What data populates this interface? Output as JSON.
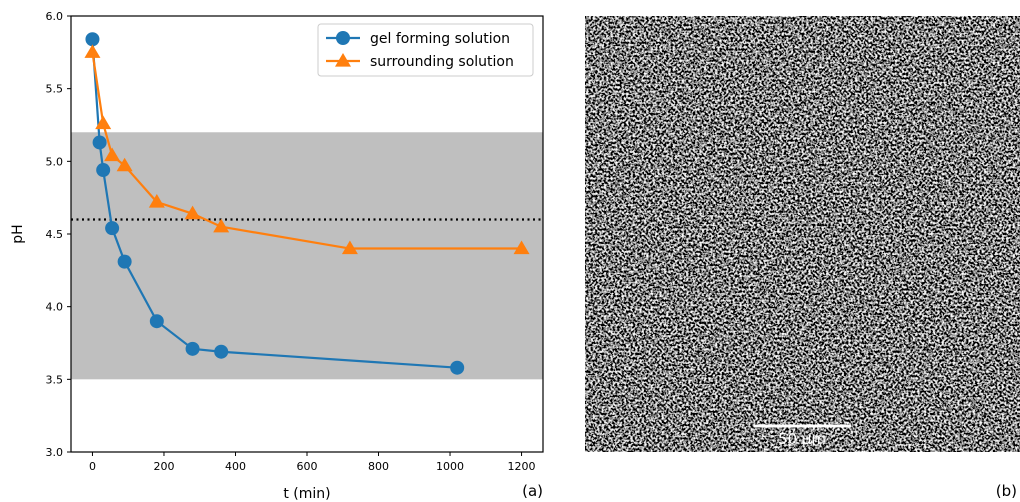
{
  "chart_data": {
    "type": "line",
    "xlabel": "t (min)",
    "ylabel": "pH",
    "panel_label": "(a)",
    "xlim": [
      -60,
      1260
    ],
    "ylim": [
      3.0,
      6.0
    ],
    "xticks": [
      0,
      200,
      400,
      600,
      800,
      1000,
      1200
    ],
    "yticks": [
      {
        "value": 3,
        "label": "3.0"
      },
      3.5,
      {
        "value": 4,
        "label": "4.0"
      },
      4.5,
      {
        "value": 5,
        "label": "5.0"
      },
      5.5,
      {
        "value": 6,
        "label": "6.0"
      }
    ],
    "shaded_band": [
      3.5,
      5.2
    ],
    "shaded_color": "#bfbfbf",
    "reference_line": 4.6,
    "legend": "upper right",
    "series": [
      {
        "name": "gel forming solution",
        "color": "#1f77b4",
        "marker": "circle",
        "x": [
          0,
          20,
          30,
          55,
          90,
          180,
          280,
          360,
          1020
        ],
        "values": [
          5.84,
          5.13,
          4.94,
          4.54,
          4.31,
          3.9,
          3.71,
          3.69,
          3.58
        ]
      },
      {
        "name": "surrounding solution",
        "color": "#ff7f0e",
        "marker": "triangle",
        "x": [
          0,
          30,
          55,
          90,
          180,
          280,
          360,
          720,
          1200
        ],
        "values": [
          5.75,
          5.26,
          5.04,
          4.97,
          4.72,
          4.64,
          4.55,
          4.4,
          4.4
        ]
      }
    ]
  },
  "image_panel": {
    "scale_bar": "50 µm",
    "panel_label": "(b)"
  }
}
